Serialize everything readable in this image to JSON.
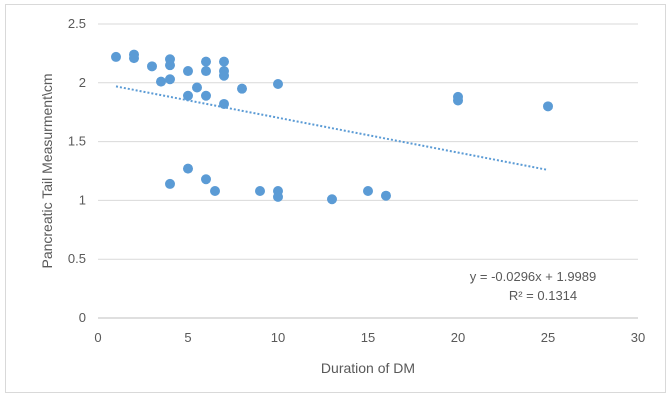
{
  "chart_data": {
    "type": "scatter",
    "title": "",
    "xlabel": "Duration of DM",
    "ylabel": "Pancreatic Tail Measurment\\cm",
    "xlim": [
      0,
      30
    ],
    "ylim": [
      0,
      2.5
    ],
    "x_ticks": [
      "0",
      "5",
      "10",
      "15",
      "20",
      "25",
      "30"
    ],
    "y_ticks": [
      "0",
      "0.5",
      "1",
      "1.5",
      "2",
      "2.5"
    ],
    "grid": "horizontal",
    "legend": "none",
    "marker_color": "#5b9bd5",
    "trendline": {
      "type": "linear",
      "slope": -0.0296,
      "intercept": 1.9989,
      "x_range": [
        1,
        25
      ],
      "style": "dotted",
      "color": "#5b9bd5"
    },
    "equation_label": "y = -0.0296x + 1.9989",
    "r2_label": "R² = 0.1314",
    "points": [
      {
        "x": 1,
        "y": 2.22
      },
      {
        "x": 2,
        "y": 2.24
      },
      {
        "x": 2,
        "y": 2.21
      },
      {
        "x": 3,
        "y": 2.14
      },
      {
        "x": 4,
        "y": 2.2
      },
      {
        "x": 4,
        "y": 2.15
      },
      {
        "x": 3.5,
        "y": 2.01
      },
      {
        "x": 4,
        "y": 2.03
      },
      {
        "x": 5,
        "y": 2.1
      },
      {
        "x": 5,
        "y": 1.89
      },
      {
        "x": 5.5,
        "y": 1.96
      },
      {
        "x": 6,
        "y": 2.18
      },
      {
        "x": 6,
        "y": 2.1
      },
      {
        "x": 6,
        "y": 1.89
      },
      {
        "x": 7,
        "y": 2.18
      },
      {
        "x": 7,
        "y": 2.1
      },
      {
        "x": 7,
        "y": 2.06
      },
      {
        "x": 7,
        "y": 1.82
      },
      {
        "x": 8,
        "y": 1.95
      },
      {
        "x": 10,
        "y": 1.99
      },
      {
        "x": 20,
        "y": 1.88
      },
      {
        "x": 20,
        "y": 1.85
      },
      {
        "x": 25,
        "y": 1.8
      },
      {
        "x": 4,
        "y": 1.14
      },
      {
        "x": 5,
        "y": 1.27
      },
      {
        "x": 6,
        "y": 1.18
      },
      {
        "x": 6.5,
        "y": 1.08
      },
      {
        "x": 9,
        "y": 1.08
      },
      {
        "x": 10,
        "y": 1.08
      },
      {
        "x": 10,
        "y": 1.03
      },
      {
        "x": 13,
        "y": 1.01
      },
      {
        "x": 15,
        "y": 1.08
      },
      {
        "x": 16,
        "y": 1.04
      }
    ]
  }
}
